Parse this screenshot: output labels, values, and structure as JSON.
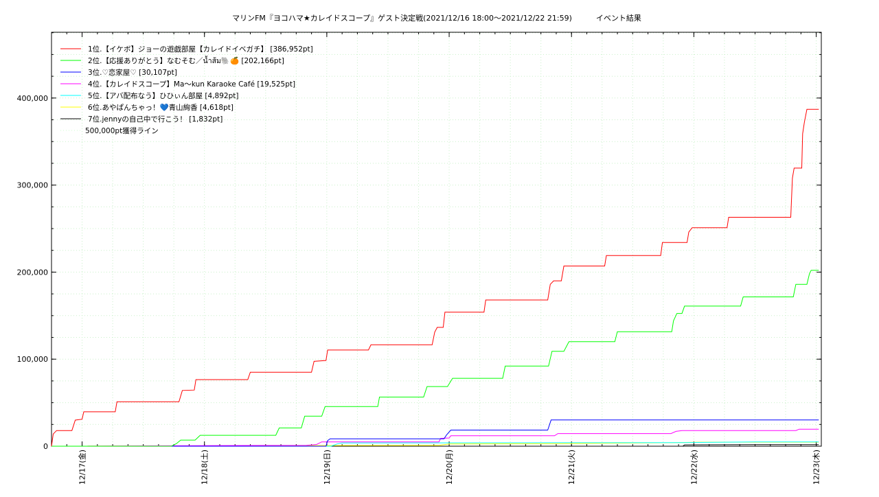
{
  "chart_data": {
    "type": "line",
    "title": "マリンFM『ヨコハマ★カレイドスコープ』ゲスト決定戦(2021/12/16 18:00～2021/12/22 21:59)          イベント結果",
    "xlabel": "",
    "ylabel": "",
    "x_range": [
      "2021-12-16T18:00",
      "2021-12-23T01:00"
    ],
    "ylim": [
      0,
      400000
    ],
    "y_ticks": [
      {
        "value": 0,
        "label": "0"
      },
      {
        "value": 100000,
        "label": "100,000"
      },
      {
        "value": 200000,
        "label": "200,000"
      },
      {
        "value": 300000,
        "label": "300,000"
      },
      {
        "value": 400000,
        "label": "400,000"
      }
    ],
    "x_ticks": [
      {
        "value": "2021-12-17T00:00",
        "label": "12/17(金)"
      },
      {
        "value": "2021-12-18T00:00",
        "label": "12/18(土)"
      },
      {
        "value": "2021-12-19T00:00",
        "label": "12/19(日)"
      },
      {
        "value": "2021-12-20T00:00",
        "label": "12/20(月)"
      },
      {
        "value": "2021-12-21T00:00",
        "label": "12/21(火)"
      },
      {
        "value": "2021-12-22T00:00",
        "label": "12/22(水)"
      },
      {
        "value": "2021-12-23T00:00",
        "label": "12/23(木)"
      }
    ],
    "grid": true,
    "legend_position": "top-left",
    "series": [
      {
        "name": "1位.【イケボ】ジョーの遊戯部屋【カレイドイベガチ】 [386,952pt]",
        "color": "#ff0000",
        "points": [
          [
            "2021-12-16T18:00",
            0
          ],
          [
            "2021-12-16T18:20",
            14000
          ],
          [
            "2021-12-16T19:00",
            18000
          ],
          [
            "2021-12-16T22:00",
            18000
          ],
          [
            "2021-12-16T22:40",
            30000
          ],
          [
            "2021-12-17T00:00",
            31000
          ],
          [
            "2021-12-17T00:20",
            39500
          ],
          [
            "2021-12-17T06:30",
            39500
          ],
          [
            "2021-12-17T06:50",
            51000
          ],
          [
            "2021-12-17T19:00",
            51000
          ],
          [
            "2021-12-17T19:40",
            64000
          ],
          [
            "2021-12-17T22:00",
            64500
          ],
          [
            "2021-12-17T22:20",
            76500
          ],
          [
            "2021-12-18T08:30",
            76500
          ],
          [
            "2021-12-18T09:00",
            85000
          ],
          [
            "2021-12-18T21:00",
            85000
          ],
          [
            "2021-12-18T21:30",
            97500
          ],
          [
            "2021-12-18T23:50",
            98500
          ],
          [
            "2021-12-19T00:10",
            110500
          ],
          [
            "2021-12-19T08:10",
            110500
          ],
          [
            "2021-12-19T08:40",
            116500
          ],
          [
            "2021-12-19T20:40",
            116500
          ],
          [
            "2021-12-19T21:10",
            131000
          ],
          [
            "2021-12-19T21:40",
            136500
          ],
          [
            "2021-12-19T22:50",
            136500
          ],
          [
            "2021-12-19T23:10",
            154000
          ],
          [
            "2021-12-20T06:50",
            154000
          ],
          [
            "2021-12-20T07:10",
            168000
          ],
          [
            "2021-12-20T19:20",
            168000
          ],
          [
            "2021-12-20T19:50",
            186000
          ],
          [
            "2021-12-20T20:30",
            190000
          ],
          [
            "2021-12-20T22:00",
            190000
          ],
          [
            "2021-12-20T22:30",
            207000
          ],
          [
            "2021-12-21T06:30",
            207000
          ],
          [
            "2021-12-21T06:50",
            219000
          ],
          [
            "2021-12-21T17:30",
            219000
          ],
          [
            "2021-12-21T17:50",
            234000
          ],
          [
            "2021-12-21T22:40",
            234000
          ],
          [
            "2021-12-21T23:00",
            246000
          ],
          [
            "2021-12-21T23:40",
            251000
          ],
          [
            "2021-12-22T06:30",
            251000
          ],
          [
            "2021-12-22T06:50",
            263000
          ],
          [
            "2021-12-22T19:00",
            263000
          ],
          [
            "2021-12-22T19:20",
            308000
          ],
          [
            "2021-12-22T19:40",
            319500
          ],
          [
            "2021-12-22T21:10",
            319500
          ],
          [
            "2021-12-22T21:20",
            359000
          ],
          [
            "2021-12-22T21:40",
            372000
          ],
          [
            "2021-12-22T22:10",
            386952
          ],
          [
            "2021-12-23T00:30",
            386952
          ]
        ]
      },
      {
        "name": "2位.【応援ありがとう】なむそむ／น้ำส้ม🐘🍊 [202,166pt]",
        "color": "#00ff00",
        "points": [
          [
            "2021-12-16T18:00",
            0
          ],
          [
            "2021-12-17T17:30",
            0
          ],
          [
            "2021-12-17T18:30",
            3000
          ],
          [
            "2021-12-17T19:20",
            7000
          ],
          [
            "2021-12-17T22:10",
            7000
          ],
          [
            "2021-12-17T23:10",
            12500
          ],
          [
            "2021-12-18T14:00",
            12500
          ],
          [
            "2021-12-18T14:40",
            21000
          ],
          [
            "2021-12-18T19:00",
            21000
          ],
          [
            "2021-12-18T19:40",
            34500
          ],
          [
            "2021-12-18T23:00",
            34500
          ],
          [
            "2021-12-18T23:40",
            45500
          ],
          [
            "2021-12-19T10:00",
            45500
          ],
          [
            "2021-12-19T10:20",
            56500
          ],
          [
            "2021-12-19T19:00",
            56500
          ],
          [
            "2021-12-19T19:40",
            68500
          ],
          [
            "2021-12-19T23:40",
            68500
          ],
          [
            "2021-12-20T00:40",
            78000
          ],
          [
            "2021-12-20T10:30",
            78000
          ],
          [
            "2021-12-20T11:00",
            92000
          ],
          [
            "2021-12-20T19:30",
            92000
          ],
          [
            "2021-12-20T20:10",
            109000
          ],
          [
            "2021-12-20T22:30",
            109000
          ],
          [
            "2021-12-20T23:30",
            120000
          ],
          [
            "2021-12-21T08:30",
            120000
          ],
          [
            "2021-12-21T09:00",
            131500
          ],
          [
            "2021-12-21T19:40",
            131500
          ],
          [
            "2021-12-21T20:00",
            144000
          ],
          [
            "2021-12-21T20:40",
            152500
          ],
          [
            "2021-12-21T21:40",
            152500
          ],
          [
            "2021-12-21T22:10",
            161000
          ],
          [
            "2021-12-22T09:10",
            161000
          ],
          [
            "2021-12-22T09:40",
            171500
          ],
          [
            "2021-12-22T19:30",
            171500
          ],
          [
            "2021-12-22T20:00",
            186000
          ],
          [
            "2021-12-22T22:10",
            186000
          ],
          [
            "2021-12-22T22:40",
            198000
          ],
          [
            "2021-12-22T23:00",
            202166
          ],
          [
            "2021-12-23T00:30",
            202166
          ]
        ]
      },
      {
        "name": "3位.♡恋家屋♡ [30,107pt]",
        "color": "#0000ff",
        "points": [
          [
            "2021-12-16T18:00",
            0
          ],
          [
            "2021-12-18T23:50",
            0
          ],
          [
            "2021-12-19T00:10",
            6500
          ],
          [
            "2021-12-19T00:40",
            8500
          ],
          [
            "2021-12-19T23:00",
            8500
          ],
          [
            "2021-12-19T23:30",
            13000
          ],
          [
            "2021-12-20T00:20",
            18500
          ],
          [
            "2021-12-20T19:20",
            18500
          ],
          [
            "2021-12-20T20:00",
            30107
          ],
          [
            "2021-12-23T00:30",
            30107
          ]
        ]
      },
      {
        "name": "4位.【カレイドスコープ】Ma～kun Karaoke Café [19,525pt]",
        "color": "#ff00ff",
        "points": [
          [
            "2021-12-16T18:00",
            0
          ],
          [
            "2021-12-18T20:00",
            1000
          ],
          [
            "2021-12-18T22:00",
            2000
          ],
          [
            "2021-12-18T23:00",
            5000
          ],
          [
            "2021-12-19T22:00",
            5000
          ],
          [
            "2021-12-19T22:20",
            9000
          ],
          [
            "2021-12-20T00:00",
            9500
          ],
          [
            "2021-12-20T00:20",
            12000
          ],
          [
            "2021-12-20T20:40",
            12000
          ],
          [
            "2021-12-20T21:20",
            14500
          ],
          [
            "2021-12-21T19:30",
            14500
          ],
          [
            "2021-12-21T20:30",
            17000
          ],
          [
            "2021-12-21T21:40",
            18000
          ],
          [
            "2021-12-22T20:00",
            18000
          ],
          [
            "2021-12-22T20:40",
            19525
          ],
          [
            "2021-12-23T00:30",
            19525
          ]
        ]
      },
      {
        "name": "5位.【アバ配布なう】ひひぃん部屋 [4,892pt]",
        "color": "#00ffff",
        "points": [
          [
            "2021-12-16T18:00",
            0
          ],
          [
            "2021-12-19T00:50",
            0
          ],
          [
            "2021-12-19T02:00",
            2500
          ],
          [
            "2021-12-19T03:00",
            3800
          ],
          [
            "2021-12-20T21:00",
            4000
          ],
          [
            "2021-12-21T22:00",
            4200
          ],
          [
            "2021-12-22T12:00",
            4892
          ],
          [
            "2021-12-23T00:30",
            4892
          ]
        ]
      },
      {
        "name": "6位.あやぱんちゃっ！💙青山絢香 [4,618pt]",
        "color": "#ffff00",
        "points": [
          [
            "2021-12-16T18:00",
            0
          ],
          [
            "2021-12-19T22:00",
            1000
          ],
          [
            "2021-12-20T00:00",
            2500
          ],
          [
            "2021-12-20T22:00",
            3000
          ],
          [
            "2021-12-21T20:00",
            4000
          ],
          [
            "2021-12-22T01:00",
            4618
          ],
          [
            "2021-12-23T00:30",
            4618
          ]
        ]
      },
      {
        "name": "7位.jennyの自己中で行こう！ [1,832pt]",
        "color": "#000000",
        "points": [
          [
            "2021-12-16T18:00",
            0
          ],
          [
            "2021-12-21T21:50",
            0
          ],
          [
            "2021-12-21T22:10",
            1500
          ],
          [
            "2021-12-22T12:00",
            1832
          ],
          [
            "2021-12-23T00:30",
            1832
          ]
        ]
      }
    ],
    "reference_line": {
      "name": "500,000pt獲得ライン",
      "value": 500000,
      "color": "#ccffcc"
    }
  }
}
